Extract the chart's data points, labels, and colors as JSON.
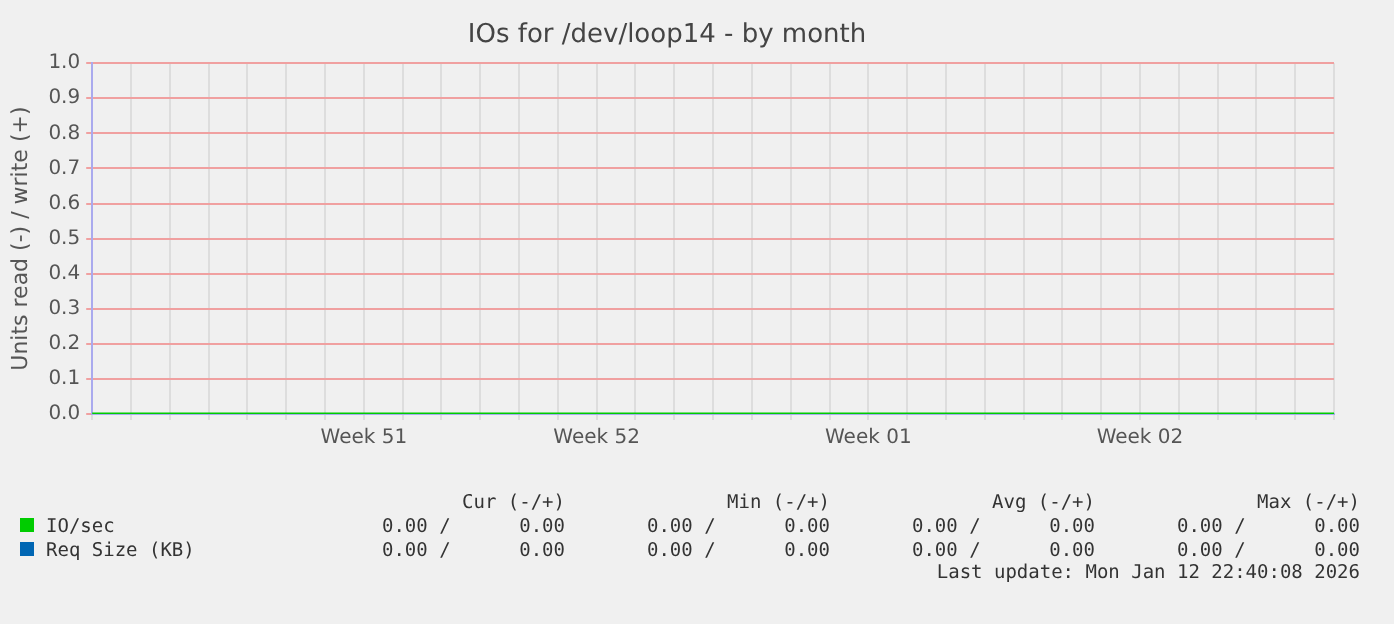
{
  "chart_data": {
    "type": "line",
    "title": "IOs for /dev/loop14 - by month",
    "ylabel": "Units read (-) / write (+)",
    "categories": [
      null,
      null,
      null,
      null,
      null,
      null,
      null,
      "Week 51",
      null,
      null,
      null,
      null,
      null,
      "Week 52",
      null,
      null,
      null,
      null,
      null,
      null,
      "Week 01",
      null,
      null,
      null,
      null,
      null,
      null,
      "Week 02",
      null,
      null,
      null,
      null,
      null
    ],
    "series": [
      {
        "name": "IO/sec",
        "color": "#00cc00",
        "values": [
          0,
          0,
          0,
          0,
          0,
          0,
          0,
          0,
          0,
          0,
          0,
          0,
          0,
          0,
          0,
          0,
          0,
          0,
          0,
          0,
          0,
          0,
          0,
          0,
          0,
          0,
          0,
          0,
          0,
          0,
          0,
          0,
          0
        ]
      },
      {
        "name": "Req Size (KB)",
        "color": "#0066b3",
        "values": [
          null,
          null,
          null,
          null,
          null,
          null,
          null,
          null,
          null,
          null,
          null,
          null,
          null,
          null,
          null,
          null,
          null,
          null,
          null,
          null,
          null,
          null,
          null,
          null,
          null,
          null,
          null,
          null,
          null,
          null,
          null,
          null,
          null
        ]
      }
    ],
    "ylim": [
      0,
      1
    ],
    "yticks": [
      {
        "value": 0,
        "label": "0.0"
      },
      {
        "value": 0.1,
        "label": "0.1"
      },
      {
        "value": 0.2,
        "label": "0.2"
      },
      {
        "value": 0.3,
        "label": "0.3"
      },
      {
        "value": 0.4,
        "label": "0.4"
      },
      {
        "value": 0.5,
        "label": "0.5"
      },
      {
        "value": 0.6,
        "label": "0.6"
      },
      {
        "value": 0.7,
        "label": "0.7"
      },
      {
        "value": 0.8,
        "label": "0.8"
      },
      {
        "value": 0.9,
        "label": "0.9"
      },
      {
        "value": 1,
        "label": "1.0"
      }
    ],
    "grid": true,
    "legend": "bottom",
    "marker": "none",
    "line_style": "solid",
    "annotations": [
      "Cur (-/+)",
      "Min (-/+)",
      "Avg (-/+)",
      "Max (-/+)",
      "0.00 /      0.00",
      "0.00 /      0.00",
      "0.00 /      0.00",
      "0.00 /      0.00",
      "0.00 /      0.00",
      "0.00 /      0.00",
      "0.00 /      0.00",
      "0.00 /      0.00",
      "Last update: Mon Jan 12 22:40:08 2026"
    ]
  }
}
